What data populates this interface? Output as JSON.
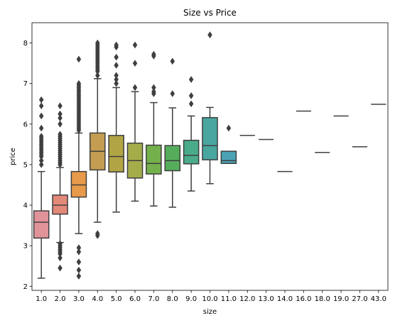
{
  "chart_data": {
    "type": "boxplot",
    "title": "Size vs Price",
    "xlabel": "size",
    "ylabel": "price",
    "ylim": [
      1.9,
      8.5
    ],
    "yticks": [
      2,
      3,
      4,
      5,
      6,
      7,
      8
    ],
    "categories": [
      "1.0",
      "2.0",
      "3.0",
      "4.0",
      "5.0",
      "6.0",
      "7.0",
      "8.0",
      "9.0",
      "10.0",
      "11.0",
      "12.0",
      "13.0",
      "14.0",
      "16.0",
      "18.0",
      "19.0",
      "27.0",
      "43.0"
    ],
    "boxes": [
      {
        "category": "1.0",
        "color": "#e1939a",
        "whislo": 2.2,
        "q1": 3.19,
        "median": 3.58,
        "q3": 3.86,
        "whishi": 4.83,
        "fliers": [
          5.0,
          5.1,
          5.2,
          5.25,
          5.3,
          5.35,
          5.4,
          5.45,
          5.5,
          5.55,
          5.6,
          5.65,
          5.7,
          5.9,
          6.2,
          6.45,
          6.6
        ]
      },
      {
        "category": "2.0",
        "color": "#e3897a",
        "whislo": 3.08,
        "q1": 3.78,
        "median": 4.0,
        "q3": 4.25,
        "whishi": 4.93,
        "fliers": [
          2.45,
          2.7,
          2.8,
          2.85,
          2.9,
          2.95,
          3.0,
          3.05,
          5.0,
          5.05,
          5.1,
          5.15,
          5.2,
          5.25,
          5.3,
          5.35,
          5.4,
          5.45,
          5.5,
          5.55,
          5.6,
          5.65,
          5.7,
          5.75,
          6.0,
          6.15,
          6.25,
          6.45
        ]
      },
      {
        "category": "3.0",
        "color": "#e79a4a",
        "whislo": 3.3,
        "q1": 4.2,
        "median": 4.5,
        "q3": 4.83,
        "whishi": 5.78,
        "fliers": [
          2.25,
          2.4,
          2.6,
          2.85,
          2.95,
          5.85,
          5.9,
          5.95,
          6.0,
          6.05,
          6.1,
          6.15,
          6.2,
          6.25,
          6.3,
          6.35,
          6.4,
          6.45,
          6.5,
          6.55,
          6.6,
          6.65,
          6.7,
          6.75,
          6.8,
          6.85,
          6.9,
          6.95,
          7.0,
          7.6
        ]
      },
      {
        "category": "4.0",
        "color": "#c49d52",
        "whislo": 3.58,
        "q1": 4.87,
        "median": 5.33,
        "q3": 5.78,
        "whishi": 7.12,
        "fliers": [
          3.25,
          3.3,
          7.2,
          7.3,
          7.35,
          7.4,
          7.45,
          7.5,
          7.55,
          7.6,
          7.65,
          7.7,
          7.75,
          7.8,
          7.85,
          7.9,
          7.95,
          8.0
        ]
      },
      {
        "category": "5.0",
        "color": "#b0a444",
        "whislo": 3.83,
        "q1": 4.82,
        "median": 5.2,
        "q3": 5.72,
        "whishi": 6.9,
        "fliers": [
          7.0,
          7.1,
          7.2,
          7.45,
          7.65,
          7.9,
          7.95
        ]
      },
      {
        "category": "6.0",
        "color": "#a5ad4a",
        "whislo": 4.1,
        "q1": 4.67,
        "median": 5.1,
        "q3": 5.53,
        "whishi": 6.8,
        "fliers": [
          6.9,
          7.5,
          7.95
        ]
      },
      {
        "category": "7.0",
        "color": "#74b04b",
        "whislo": 3.98,
        "q1": 4.77,
        "median": 5.03,
        "q3": 5.48,
        "whishi": 6.53,
        "fliers": [
          6.75,
          6.8,
          6.9,
          7.68,
          7.72
        ]
      },
      {
        "category": "8.0",
        "color": "#55ad5b",
        "whislo": 3.95,
        "q1": 4.85,
        "median": 5.1,
        "q3": 5.47,
        "whishi": 6.4,
        "fliers": [
          6.75,
          7.55
        ]
      },
      {
        "category": "9.0",
        "color": "#4aab8b",
        "whislo": 4.35,
        "q1": 5.02,
        "median": 5.23,
        "q3": 5.6,
        "whishi": 6.2,
        "fliers": [
          6.5,
          6.7,
          7.1
        ]
      },
      {
        "category": "10.0",
        "color": "#49a7a0",
        "whislo": 4.53,
        "q1": 5.12,
        "median": 5.47,
        "q3": 6.16,
        "whishi": 6.41,
        "fliers": [
          8.2
        ]
      },
      {
        "category": "11.0",
        "color": "#4aa3b5",
        "whislo": 5.03,
        "q1": 5.03,
        "median": 5.1,
        "q3": 5.33,
        "whishi": 5.33,
        "fliers": [
          5.9
        ]
      },
      {
        "category": "12.0",
        "color": "#4d9fc6",
        "whislo": 5.72,
        "q1": 5.72,
        "median": 5.72,
        "q3": 5.72,
        "whishi": 5.72,
        "fliers": []
      },
      {
        "category": "13.0",
        "color": "#5ba0d6",
        "whislo": 5.62,
        "q1": 5.62,
        "median": 5.62,
        "q3": 5.62,
        "whishi": 5.62,
        "fliers": []
      },
      {
        "category": "14.0",
        "color": "#7c9ee0",
        "whislo": 4.83,
        "q1": 4.83,
        "median": 4.83,
        "q3": 4.83,
        "whishi": 4.83,
        "fliers": []
      },
      {
        "category": "16.0",
        "color": "#9a99e3",
        "whislo": 6.32,
        "q1": 6.32,
        "median": 6.32,
        "q3": 6.32,
        "whishi": 6.32,
        "fliers": []
      },
      {
        "category": "18.0",
        "color": "#b58fe0",
        "whislo": 5.3,
        "q1": 5.3,
        "median": 5.3,
        "q3": 5.3,
        "whishi": 5.3,
        "fliers": []
      },
      {
        "category": "19.0",
        "color": "#cf85d8",
        "whislo": 6.2,
        "q1": 6.2,
        "median": 6.2,
        "q3": 6.2,
        "whishi": 6.2,
        "fliers": []
      },
      {
        "category": "27.0",
        "color": "#db88c4",
        "whislo": 5.44,
        "q1": 5.44,
        "median": 5.44,
        "q3": 5.44,
        "whishi": 5.44,
        "fliers": []
      },
      {
        "category": "43.0",
        "color": "#e08cb1",
        "whislo": 6.49,
        "q1": 6.49,
        "median": 6.49,
        "q3": 6.49,
        "whishi": 6.49,
        "fliers": []
      }
    ],
    "line_color": "#3f3f3f",
    "grid": false,
    "legend": "none"
  }
}
